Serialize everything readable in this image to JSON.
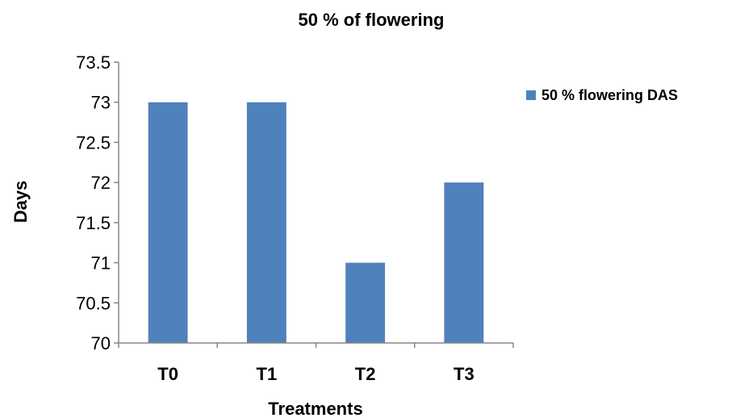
{
  "chart_data": {
    "type": "bar",
    "title": "50 % of flowering",
    "xlabel": "Treatments",
    "ylabel": "Days",
    "categories": [
      "T0",
      "T1",
      "T2",
      "T3"
    ],
    "series": [
      {
        "name": "50 % flowering DAS",
        "values": [
          73,
          73,
          71,
          72
        ],
        "color": "#4f81bd"
      }
    ],
    "ylim": [
      70,
      73.5
    ],
    "yticks": [
      "70",
      "70.5",
      "71",
      "71.5",
      "72",
      "72.5",
      "73",
      "73.5"
    ],
    "grid": false,
    "legend_position": "right"
  }
}
